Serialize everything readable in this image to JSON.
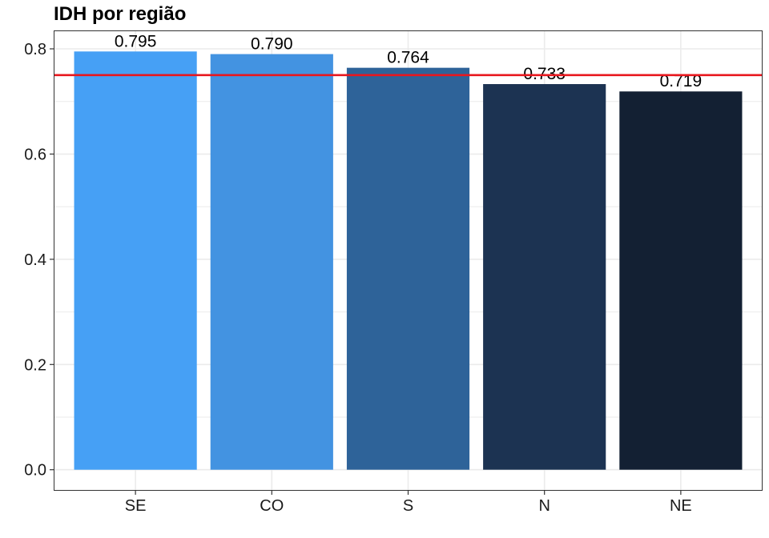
{
  "chart_data": {
    "type": "bar",
    "title": "IDH por região",
    "xlabel": "",
    "ylabel": "",
    "categories": [
      "SE",
      "CO",
      "S",
      "N",
      "NE"
    ],
    "values": [
      0.795,
      0.79,
      0.764,
      0.733,
      0.719
    ],
    "data_labels": [
      "0.795",
      "0.790",
      "0.764",
      "0.733",
      "0.719"
    ],
    "bar_colors": [
      "#46A0F5",
      "#4393E1",
      "#2E6399",
      "#1C3352",
      "#132033"
    ],
    "ylim": [
      -0.04,
      0.835
    ],
    "yticks": [
      0.0,
      0.2,
      0.4,
      0.6,
      0.8
    ],
    "ytick_labels": [
      "0.0",
      "0.2",
      "0.4",
      "0.6",
      "0.8"
    ],
    "reference_line": {
      "value": 0.75,
      "color": "#E8171E"
    },
    "grid": true,
    "legend": "none",
    "panel_border_color": "#333333",
    "grid_color": "#EBEBEB"
  }
}
